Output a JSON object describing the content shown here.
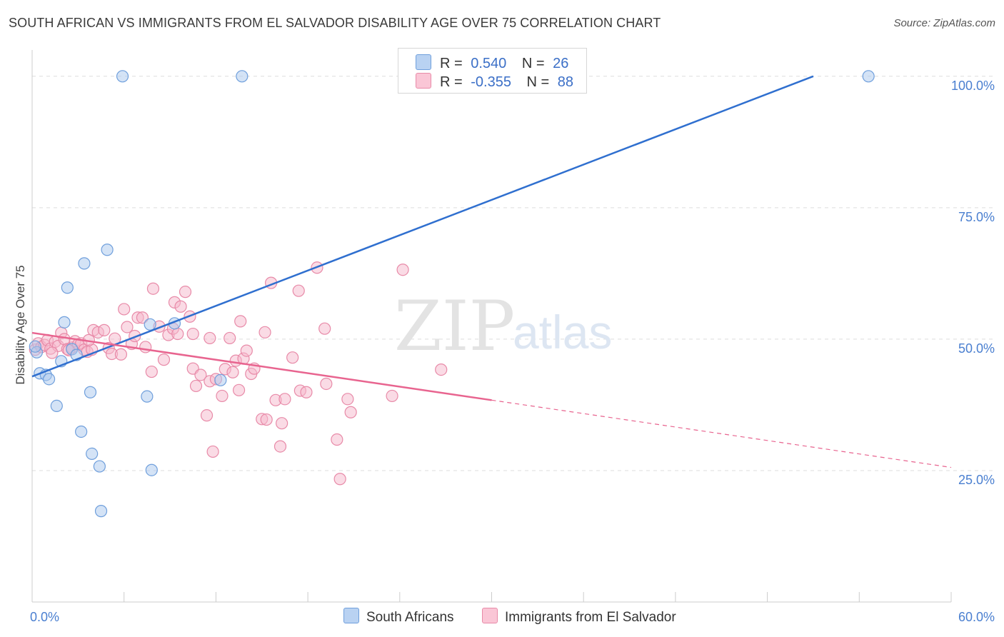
{
  "header": {
    "title": "SOUTH AFRICAN VS IMMIGRANTS FROM EL SALVADOR DISABILITY AGE OVER 75 CORRELATION CHART",
    "source": "Source: ZipAtlas.com"
  },
  "watermark": {
    "zip": "ZIP",
    "atlas": "atlas"
  },
  "legend_top": {
    "rows": [
      {
        "r_label": "R =",
        "r_value": "0.540",
        "n_label": "N =",
        "n_value": "26"
      },
      {
        "r_label": "R =",
        "r_value": "-0.355",
        "n_label": "N =",
        "n_value": "88"
      }
    ]
  },
  "legend_bottom": {
    "items": [
      {
        "label": "South Africans"
      },
      {
        "label": "Immigrants from El Salvador"
      }
    ]
  },
  "colors": {
    "blue_fill": "#a9c7ee",
    "blue_stroke": "#6f9fdc",
    "blue_line": "#2f6fcf",
    "pink_fill": "#f6b8cb",
    "pink_stroke": "#e88aa8",
    "pink_line": "#e8648f",
    "tick_text": "#4a7fd0",
    "grid": "#dddddd"
  },
  "chart_data": {
    "type": "scatter",
    "title": "SOUTH AFRICAN VS IMMIGRANTS FROM EL SALVADOR DISABILITY AGE OVER 75 CORRELATION CHART",
    "xlabel": "",
    "ylabel": "Disability Age Over 75",
    "xlim": [
      0,
      60
    ],
    "ylim": [
      0,
      105
    ],
    "x_tick_labels": [
      "0.0%",
      "60.0%"
    ],
    "y_ticks": [
      25,
      50,
      75,
      100
    ],
    "y_tick_labels": [
      "25.0%",
      "50.0%",
      "75.0%",
      "100.0%"
    ],
    "grid": true,
    "legend_position": "top-center",
    "series": [
      {
        "name": "South Africans",
        "color": "#a9c7ee",
        "points": [
          [
            0.3,
            47.5
          ],
          [
            0.5,
            43.5
          ],
          [
            0.9,
            43.2
          ],
          [
            1.1,
            42.4
          ],
          [
            1.6,
            37.3
          ],
          [
            1.9,
            45.8
          ],
          [
            2.1,
            53.2
          ],
          [
            2.3,
            59.8
          ],
          [
            2.6,
            48.1
          ],
          [
            2.9,
            47.0
          ],
          [
            3.4,
            64.4
          ],
          [
            3.8,
            39.9
          ],
          [
            3.9,
            28.2
          ],
          [
            4.4,
            25.8
          ],
          [
            4.5,
            17.3
          ],
          [
            4.9,
            67.0
          ],
          [
            5.9,
            100.0
          ],
          [
            7.5,
            39.1
          ],
          [
            7.7,
            52.8
          ],
          [
            7.8,
            25.1
          ],
          [
            9.3,
            53.0
          ],
          [
            12.3,
            42.2
          ],
          [
            13.7,
            100.0
          ],
          [
            54.6,
            100.0
          ],
          [
            3.2,
            32.4
          ],
          [
            0.2,
            48.6
          ]
        ],
        "trend": {
          "x": [
            0.0,
            51.0
          ],
          "y": [
            42.9,
            100.0
          ],
          "style": "solid"
        }
      },
      {
        "name": "Immigrants from El Salvador",
        "color": "#f6b8cb",
        "points": [
          [
            0.2,
            48.0
          ],
          [
            0.4,
            49.2
          ],
          [
            0.6,
            48.5
          ],
          [
            0.8,
            48.9
          ],
          [
            1.0,
            49.8
          ],
          [
            1.2,
            48.2
          ],
          [
            1.5,
            49.5
          ],
          [
            1.7,
            48.7
          ],
          [
            1.9,
            51.2
          ],
          [
            2.1,
            50.0
          ],
          [
            2.3,
            48.1
          ],
          [
            2.6,
            48.4
          ],
          [
            2.8,
            49.6
          ],
          [
            3.0,
            49.0
          ],
          [
            3.2,
            49.2
          ],
          [
            3.4,
            48.0
          ],
          [
            3.6,
            47.6
          ],
          [
            3.9,
            48.0
          ],
          [
            4.0,
            51.7
          ],
          [
            4.3,
            51.3
          ],
          [
            4.7,
            51.7
          ],
          [
            5.0,
            48.3
          ],
          [
            5.2,
            47.2
          ],
          [
            5.4,
            50.1
          ],
          [
            5.8,
            47.1
          ],
          [
            6.0,
            55.7
          ],
          [
            6.2,
            52.3
          ],
          [
            6.5,
            49.1
          ],
          [
            6.7,
            50.6
          ],
          [
            6.9,
            54.1
          ],
          [
            7.2,
            54.1
          ],
          [
            7.4,
            48.5
          ],
          [
            7.8,
            43.8
          ],
          [
            7.9,
            59.6
          ],
          [
            8.3,
            52.4
          ],
          [
            8.6,
            46.1
          ],
          [
            8.9,
            50.8
          ],
          [
            9.2,
            52.0
          ],
          [
            9.3,
            57.0
          ],
          [
            9.5,
            51.0
          ],
          [
            9.7,
            56.2
          ],
          [
            10.0,
            59.0
          ],
          [
            10.3,
            54.3
          ],
          [
            10.5,
            51.0
          ],
          [
            10.5,
            44.4
          ],
          [
            10.7,
            41.1
          ],
          [
            11.0,
            43.2
          ],
          [
            11.4,
            35.5
          ],
          [
            11.6,
            50.2
          ],
          [
            11.6,
            42.0
          ],
          [
            11.8,
            28.6
          ],
          [
            12.0,
            42.4
          ],
          [
            12.4,
            39.2
          ],
          [
            12.6,
            44.3
          ],
          [
            12.9,
            50.2
          ],
          [
            13.1,
            43.7
          ],
          [
            13.3,
            45.9
          ],
          [
            13.5,
            40.3
          ],
          [
            13.6,
            53.4
          ],
          [
            13.8,
            46.3
          ],
          [
            14.0,
            47.8
          ],
          [
            14.3,
            43.4
          ],
          [
            14.5,
            44.4
          ],
          [
            15.0,
            34.8
          ],
          [
            15.2,
            51.3
          ],
          [
            15.3,
            34.7
          ],
          [
            15.6,
            60.7
          ],
          [
            15.9,
            38.4
          ],
          [
            16.2,
            29.6
          ],
          [
            16.3,
            34.0
          ],
          [
            16.5,
            38.6
          ],
          [
            17.0,
            46.5
          ],
          [
            17.4,
            59.2
          ],
          [
            17.5,
            40.2
          ],
          [
            17.9,
            39.9
          ],
          [
            18.6,
            63.6
          ],
          [
            19.1,
            52.0
          ],
          [
            19.2,
            41.5
          ],
          [
            19.9,
            30.9
          ],
          [
            20.1,
            23.4
          ],
          [
            20.6,
            38.6
          ],
          [
            20.8,
            36.1
          ],
          [
            23.5,
            39.2
          ],
          [
            24.2,
            63.2
          ],
          [
            26.7,
            44.2
          ],
          [
            2.4,
            47.9
          ],
          [
            3.7,
            49.8
          ],
          [
            1.3,
            47.4
          ]
        ],
        "trend": {
          "x": [
            0.0,
            30.0
          ],
          "y": [
            51.2,
            38.4
          ],
          "style": "solid"
        },
        "trend_extension": {
          "x": [
            30.0,
            60.0
          ],
          "y": [
            38.4,
            25.6
          ],
          "style": "dashed"
        }
      }
    ]
  }
}
